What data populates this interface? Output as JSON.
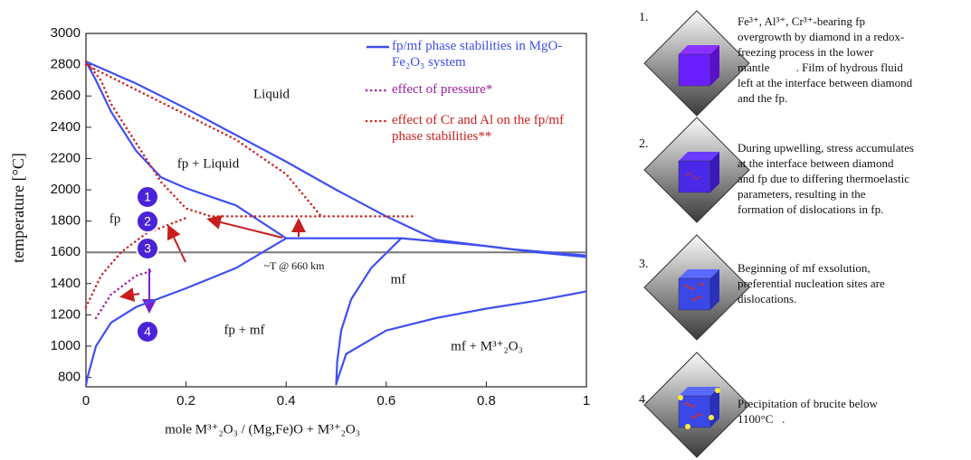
{
  "chart_data": {
    "type": "line",
    "xlabel": "mole  M³⁺₂O₃ / (Mg,Fe)O + M³⁺₂O₃",
    "ylabel": "temperature [°C]",
    "xlim": [
      0,
      1
    ],
    "ylim": [
      740,
      3000
    ],
    "xticks": [
      0,
      0.2,
      0.4,
      0.6,
      0.8,
      1
    ],
    "yticks": [
      800,
      1000,
      1200,
      1400,
      1600,
      1800,
      2000,
      2200,
      2400,
      2600,
      2800,
      3000
    ],
    "legend": "upper right",
    "series": [
      {
        "name": "fp/mf phase stabilities  in MgO-Fe₂O₃ system",
        "color": "#3f4ff0",
        "style": "solid",
        "curves": [
          {
            "x": [
              0,
              0.1,
              0.2,
              0.3,
              0.4,
              0.5,
              0.6,
              0.7
            ],
            "y": [
              2820,
              2680,
              2520,
              2350,
              2180,
              2000,
              1830,
              1680
            ]
          },
          {
            "x": [
              0,
              0.02,
              0.05,
              0.1,
              0.15,
              0.2,
              0.3,
              0.4
            ],
            "y": [
              2820,
              2700,
              2500,
              2250,
              2080,
              2010,
              1900,
              1690
            ]
          },
          {
            "x": [
              0.4,
              0.63
            ],
            "y": [
              1690,
              1690
            ]
          },
          {
            "x": [
              0,
              0.003,
              0.02,
              0.05,
              0.1,
              0.2,
              0.3,
              0.4
            ],
            "y": [
              750,
              800,
              1000,
              1150,
              1250,
              1370,
              1500,
              1690
            ]
          },
          {
            "x": [
              0.5,
              0.502,
              0.51,
              0.53,
              0.57,
              0.63
            ],
            "y": [
              750,
              900,
              1100,
              1300,
              1500,
              1690
            ]
          },
          {
            "x": [
              0.63,
              0.7,
              0.8,
              0.9,
              1
            ],
            "y": [
              1690,
              1670,
              1640,
              1600,
              1570
            ]
          },
          {
            "x": [
              0.7,
              0.85,
              1
            ],
            "y": [
              1680,
              1620,
              1580
            ]
          },
          {
            "x": [
              0.5,
              0.52,
              0.6,
              0.7,
              0.8,
              0.9,
              1
            ],
            "y": [
              760,
              950,
              1100,
              1180,
              1240,
              1290,
              1350
            ]
          }
        ]
      },
      {
        "name": "effect of pressure*",
        "color": "#a020a0",
        "style": "dotted",
        "curves": [
          {
            "x": [
              0.02,
              0.05,
              0.1,
              0.13
            ],
            "y": [
              1180,
              1330,
              1450,
              1480
            ]
          }
        ]
      },
      {
        "name": "effect of Cr and Al on the fp/mf phase stabilities**",
        "color": "#d02020",
        "style": "dotted",
        "curves": [
          {
            "x": [
              0,
              0.03,
              0.05,
              0.1,
              0.15,
              0.2,
              0.25,
              0.4,
              0.66
            ],
            "y": [
              2820,
              2700,
              2550,
              2300,
              2050,
              1880,
              1830,
              1830,
              1830
            ]
          },
          {
            "x": [
              0,
              0.1,
              0.2,
              0.3,
              0.4,
              0.47
            ],
            "y": [
              2800,
              2640,
              2480,
              2320,
              2100,
              1830
            ]
          },
          {
            "x": [
              0,
              0.03,
              0.07,
              0.12,
              0.2
            ],
            "y": [
              1250,
              1450,
              1600,
              1720,
              1820
            ]
          }
        ]
      }
    ],
    "reference_line": {
      "label": "~T @ 660 km",
      "y": 1600,
      "color": "#777777"
    },
    "annotations": [
      "Liquid",
      "fp + Liquid",
      "fp",
      "mf",
      "fp + mf",
      "mf + M³⁺₂O₃"
    ],
    "markers": [
      "1",
      "2",
      "3",
      "4"
    ]
  },
  "steps": [
    {
      "number": "1.",
      "lines": [
        "Fe³⁺, Al³⁺, Cr³⁺-bearing fp",
        "overgrowth by diamond in a redox-",
        "freezing process in the lower",
        "mantle         . Film of hydrous fluid",
        "left at the interface between diamond",
        "and the fp."
      ]
    },
    {
      "number": "2.",
      "lines": [
        "During upwelling, stress accumulates",
        "at the interface between diamond",
        "and fp due to differing thermoelastic",
        "parameters, resulting in the",
        "formation of dislocations in fp."
      ]
    },
    {
      "number": "3.",
      "lines": [
        "Beginning of mf exsolution,",
        "preferential nucleation sites are",
        "dislocations."
      ]
    },
    {
      "number": "4.",
      "lines": [
        "Precipitation of brucite below",
        "1100°C   ."
      ]
    }
  ]
}
